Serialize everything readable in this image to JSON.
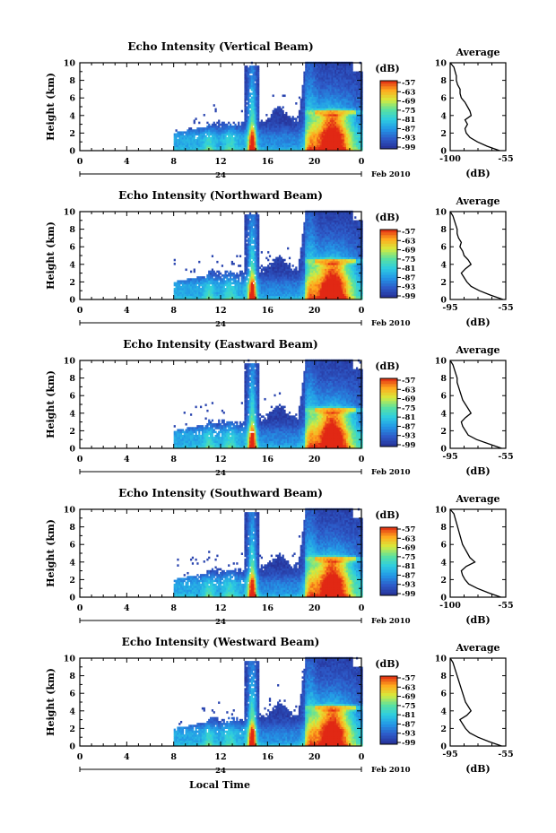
{
  "figure": {
    "xlabel": "Local Time",
    "date_label": "Feb 2010",
    "day_label": "24",
    "ylabel": "Height (km)",
    "cbar_unit": "(dB)",
    "avg_title": "Average",
    "avg_xlabel": "(dB)"
  },
  "chart_data": [
    {
      "type": "heatmap",
      "title": "Echo Intensity (Vertical Beam)",
      "ylabel": "Height (km)",
      "x_ticks": [
        "0",
        "4",
        "8",
        "12",
        "16",
        "20",
        "0"
      ],
      "y_ticks": [
        "0",
        "2",
        "4",
        "6",
        "8",
        "10"
      ],
      "xlim": [
        0,
        24
      ],
      "ylim": [
        0,
        10
      ],
      "colorbar": {
        "label": "(dB)",
        "ticks": [
          "-57",
          "-63",
          "-69",
          "-75",
          "-81",
          "-87",
          "-93",
          "-99"
        ]
      },
      "profile": {
        "title": "Average",
        "xlabel": "(dB)",
        "x_ticks": [
          "-100",
          "-55"
        ],
        "xlim": [
          -100,
          -55
        ],
        "y": [
          0,
          0.5,
          1,
          1.5,
          2,
          2.5,
          3,
          3.5,
          4,
          4.5,
          5,
          5.5,
          6,
          6.5,
          7,
          7.5,
          8,
          8.5,
          9,
          9.5,
          10
        ],
        "x": [
          -60,
          -70,
          -78,
          -84,
          -87,
          -88,
          -86,
          -88,
          -83,
          -84,
          -86,
          -88,
          -91,
          -92,
          -92,
          -94,
          -95,
          -95,
          -96,
          -97,
          -100
        ]
      }
    },
    {
      "type": "heatmap",
      "title": "Echo Intensity (Northward Beam)",
      "ylabel": "Height (km)",
      "x_ticks": [
        "0",
        "4",
        "8",
        "12",
        "16",
        "20",
        "0"
      ],
      "y_ticks": [
        "0",
        "2",
        "4",
        "6",
        "8",
        "10"
      ],
      "xlim": [
        0,
        24
      ],
      "ylim": [
        0,
        10
      ],
      "colorbar": {
        "label": "(dB)",
        "ticks": [
          "-57",
          "-63",
          "-69",
          "-75",
          "-81",
          "-87",
          "-93",
          "-99"
        ]
      },
      "profile": {
        "title": "Average",
        "xlabel": "(dB)",
        "x_ticks": [
          "-95",
          "-55"
        ],
        "xlim": [
          -95,
          -55
        ],
        "y": [
          0,
          0.5,
          1,
          1.5,
          2,
          2.5,
          3,
          3.5,
          4,
          4.5,
          5,
          5.5,
          6,
          6.5,
          7,
          7.5,
          8,
          8.5,
          9,
          9.5,
          10
        ],
        "x": [
          -57,
          -66,
          -74,
          -80,
          -83,
          -85,
          -87,
          -84,
          -80,
          -82,
          -85,
          -86,
          -88,
          -87,
          -89,
          -90,
          -90,
          -91,
          -92,
          -93,
          -95
        ]
      }
    },
    {
      "type": "heatmap",
      "title": "Echo Intensity (Eastward Beam)",
      "ylabel": "Height (km)",
      "x_ticks": [
        "0",
        "4",
        "8",
        "12",
        "16",
        "20",
        "0"
      ],
      "y_ticks": [
        "0",
        "2",
        "4",
        "6",
        "8",
        "10"
      ],
      "xlim": [
        0,
        24
      ],
      "ylim": [
        0,
        10
      ],
      "colorbar": {
        "label": "(dB)",
        "ticks": [
          "-57",
          "-63",
          "-69",
          "-75",
          "-81",
          "-87",
          "-93",
          "-99"
        ]
      },
      "profile": {
        "title": "Average",
        "xlabel": "(dB)",
        "x_ticks": [
          "-95",
          "-55"
        ],
        "xlim": [
          -95,
          -55
        ],
        "y": [
          0,
          0.5,
          1,
          1.5,
          2,
          2.5,
          3,
          3.5,
          4,
          4.5,
          5,
          5.5,
          6,
          6.5,
          7,
          7.5,
          8,
          8.5,
          9,
          9.5,
          10
        ],
        "x": [
          -58,
          -67,
          -76,
          -82,
          -84,
          -86,
          -87,
          -84,
          -80,
          -82,
          -84,
          -86,
          -87,
          -88,
          -89,
          -90,
          -90,
          -91,
          -92,
          -93,
          -95
        ]
      }
    },
    {
      "type": "heatmap",
      "title": "Echo Intensity (Southward Beam)",
      "ylabel": "Height (km)",
      "x_ticks": [
        "0",
        "4",
        "8",
        "12",
        "16",
        "20",
        "0"
      ],
      "y_ticks": [
        "0",
        "2",
        "4",
        "6",
        "8",
        "10"
      ],
      "xlim": [
        0,
        24
      ],
      "ylim": [
        0,
        10
      ],
      "colorbar": {
        "label": "(dB)",
        "ticks": [
          "-57",
          "-63",
          "-69",
          "-75",
          "-81",
          "-87",
          "-93",
          "-99"
        ]
      },
      "profile": {
        "title": "Average",
        "xlabel": "(dB)",
        "x_ticks": [
          "-100",
          "-55"
        ],
        "xlim": [
          -100,
          -55
        ],
        "y": [
          0,
          0.5,
          1,
          1.5,
          2,
          2.5,
          3,
          3.5,
          4,
          4.5,
          5,
          5.5,
          6,
          6.5,
          7,
          7.5,
          8,
          8.5,
          9,
          9.5,
          10
        ],
        "x": [
          -59,
          -69,
          -78,
          -85,
          -88,
          -90,
          -91,
          -87,
          -80,
          -84,
          -86,
          -88,
          -90,
          -91,
          -92,
          -93,
          -94,
          -95,
          -96,
          -97,
          -100
        ]
      }
    },
    {
      "type": "heatmap",
      "title": "Echo Intensity (Westward Beam)",
      "ylabel": "Height (km)",
      "x_ticks": [
        "0",
        "4",
        "8",
        "12",
        "16",
        "20",
        "0"
      ],
      "y_ticks": [
        "0",
        "2",
        "4",
        "6",
        "8",
        "10"
      ],
      "xlim": [
        0,
        24
      ],
      "ylim": [
        0,
        10
      ],
      "colorbar": {
        "label": "(dB)",
        "ticks": [
          "-57",
          "-63",
          "-69",
          "-75",
          "-81",
          "-87",
          "-93",
          "-99"
        ]
      },
      "profile": {
        "title": "Average",
        "xlabel": "(dB)",
        "x_ticks": [
          "-95",
          "-55"
        ],
        "xlim": [
          -95,
          -55
        ],
        "y": [
          0,
          0.5,
          1,
          1.5,
          2,
          2.5,
          3,
          3.5,
          4,
          4.5,
          5,
          5.5,
          6,
          6.5,
          7,
          7.5,
          8,
          8.5,
          9,
          9.5,
          10
        ],
        "x": [
          -58,
          -67,
          -75,
          -81,
          -84,
          -86,
          -88,
          -83,
          -80,
          -82,
          -84,
          -85,
          -86,
          -87,
          -88,
          -89,
          -90,
          -91,
          -92,
          -93,
          -95
        ]
      }
    }
  ]
}
